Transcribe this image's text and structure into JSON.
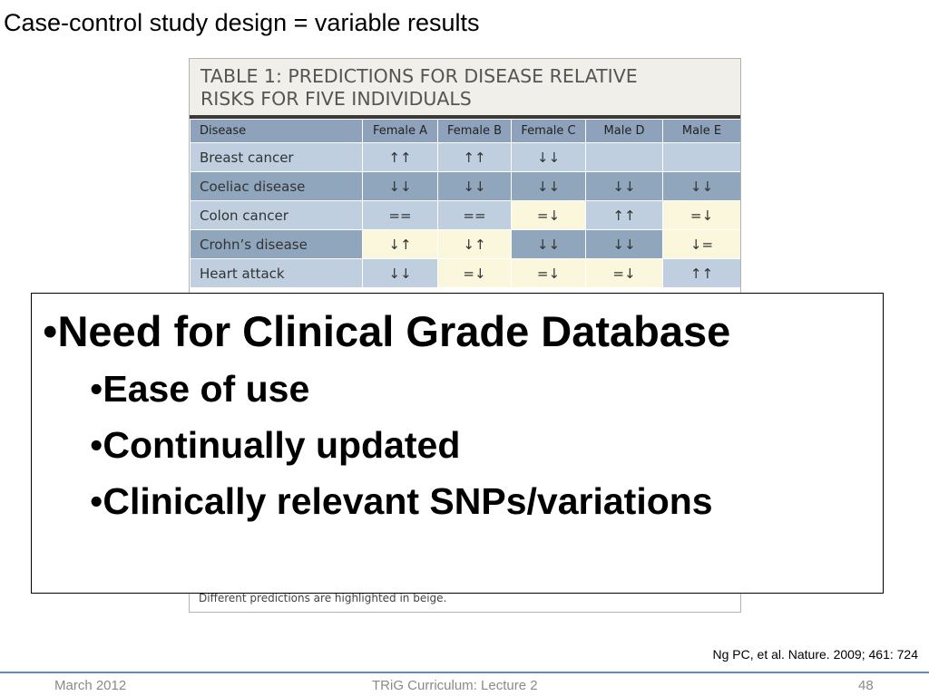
{
  "slide": {
    "title": "Case-control study design = variable results",
    "citation": "Ng PC, et al. Nature. 2009; 461: 724"
  },
  "table": {
    "heading_line1": "TABLE 1: PREDICTIONS FOR DISEASE RELATIVE",
    "heading_line2": "RISKS FOR FIVE INDIVIDUALS",
    "columns": [
      "Disease",
      "Female A",
      "Female B",
      "Female C",
      "Male D",
      "Male E"
    ],
    "rows": [
      {
        "disease": "Breast cancer",
        "values": [
          "↑↑",
          "↑↑",
          "↓↓",
          "",
          ""
        ],
        "highlighted": [
          false,
          false,
          false,
          false,
          false
        ],
        "shade": "light"
      },
      {
        "disease": "Coeliac disease",
        "values": [
          "↓↓",
          "↓↓",
          "↓↓",
          "↓↓",
          "↓↓"
        ],
        "highlighted": [
          false,
          false,
          false,
          false,
          false
        ],
        "shade": "dark"
      },
      {
        "disease": "Colon cancer",
        "values": [
          "==",
          "==",
          "=↓",
          "↑↑",
          "=↓"
        ],
        "highlighted": [
          false,
          false,
          true,
          false,
          true
        ],
        "shade": "light"
      },
      {
        "disease": "Crohn’s disease",
        "values": [
          "↓↑",
          "↓↑",
          "↓↓",
          "↓↓",
          "↓="
        ],
        "highlighted": [
          true,
          true,
          false,
          false,
          true
        ],
        "shade": "dark"
      },
      {
        "disease": "Heart attack",
        "values": [
          "↓↓",
          "=↓",
          "=↓",
          "=↓",
          "↑↑"
        ],
        "highlighted": [
          false,
          true,
          true,
          true,
          false
        ],
        "shade": "light"
      }
    ],
    "footnote": "Different predictions are highlighted in beige."
  },
  "overlay": {
    "main_bullet": "Need for Clinical Grade Database",
    "sub_bullets": [
      "Ease of use",
      "Continually updated",
      "Clinically relevant SNPs/variations"
    ]
  },
  "footer": {
    "date": "March 2012",
    "center": "TRiG Curriculum: Lecture 2",
    "page": "48"
  },
  "colors": {
    "table_header": "#8ea3bb",
    "row_light": "#bfcfdf",
    "row_dark": "#8fa6bd",
    "highlight_beige": "#fbf7dc",
    "footer_line": "#5b8bc0"
  }
}
